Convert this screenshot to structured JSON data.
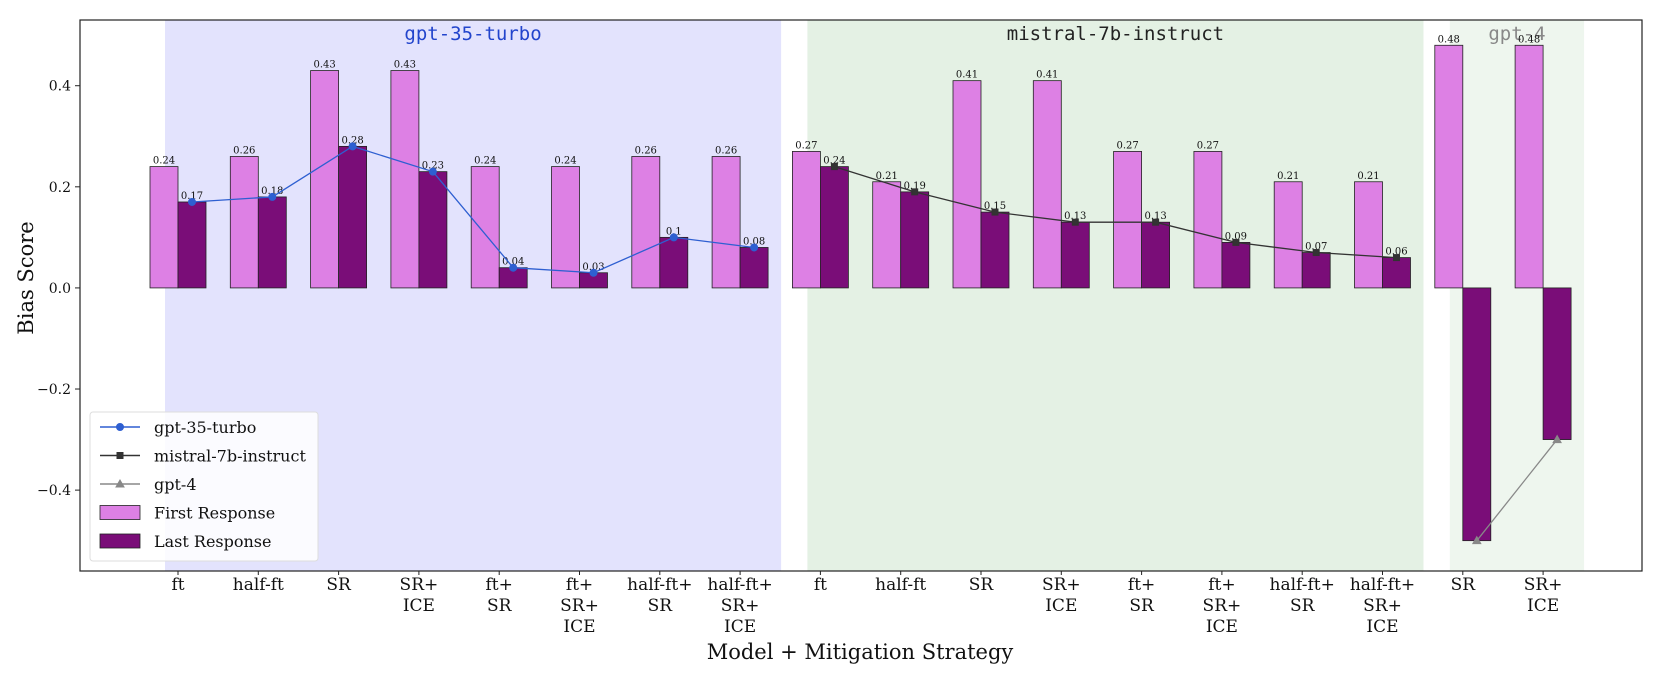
{
  "chart_data": {
    "type": "bar",
    "xlabel": "Model + Mitigation Strategy",
    "ylabel": "Bias Score",
    "ylim": [
      -0.56,
      0.53
    ],
    "yticks": [
      "0.4",
      "0.2",
      "0.0",
      "−0.2",
      "−0.4"
    ],
    "ytick_values": [
      0.4,
      0.2,
      0.0,
      -0.2,
      -0.4
    ],
    "legend_position": "bottom-left",
    "groups": [
      {
        "name": "gpt-35-turbo",
        "title_color": "#2244cc",
        "shade_color": "#e3e3fd",
        "line_color": "#2e5fd1",
        "marker": "circle",
        "categories": [
          [
            "ft"
          ],
          [
            "half-ft"
          ],
          [
            "SR"
          ],
          [
            "SR+",
            "ICE"
          ],
          [
            "ft+",
            "SR"
          ],
          [
            "ft+",
            "SR+",
            "ICE"
          ],
          [
            "half-ft+",
            "SR"
          ],
          [
            "half-ft+",
            "SR+",
            "ICE"
          ]
        ],
        "first": [
          0.24,
          0.26,
          0.43,
          0.43,
          0.24,
          0.24,
          0.26,
          0.26
        ],
        "last": [
          0.17,
          0.18,
          0.28,
          0.23,
          0.04,
          0.03,
          0.1,
          0.08
        ],
        "first_labels": [
          "0.24",
          "0.26",
          "0.43",
          "0.43",
          "0.24",
          "0.24",
          "0.26",
          "0.26"
        ],
        "last_labels": [
          "0.17",
          "0.18",
          "0.28",
          "0.23",
          "0.04",
          "0.03",
          "0.1",
          "0.08"
        ]
      },
      {
        "name": "mistral-7b-instruct",
        "title_color": "#222222",
        "shade_color": "#e4f1e4",
        "line_color": "#333333",
        "marker": "square",
        "categories": [
          [
            "ft"
          ],
          [
            "half-ft"
          ],
          [
            "SR"
          ],
          [
            "SR+",
            "ICE"
          ],
          [
            "ft+",
            "SR"
          ],
          [
            "ft+",
            "SR+",
            "ICE"
          ],
          [
            "half-ft+",
            "SR"
          ],
          [
            "half-ft+",
            "SR+",
            "ICE"
          ]
        ],
        "first": [
          0.27,
          0.21,
          0.41,
          0.41,
          0.27,
          0.27,
          0.21,
          0.21
        ],
        "last": [
          0.24,
          0.19,
          0.15,
          0.13,
          0.13,
          0.09,
          0.07,
          0.06
        ],
        "first_labels": [
          "0.27",
          "0.21",
          "0.41",
          "0.41",
          "0.27",
          "0.27",
          "0.21",
          "0.21"
        ],
        "last_labels": [
          "0.24",
          "0.19",
          "0.15",
          "0.13",
          "0.13",
          "0.09",
          "0.07",
          "0.06"
        ]
      },
      {
        "name": "gpt-4",
        "title_color": "#888888",
        "shade_color": "#eef6ee",
        "line_color": "#888888",
        "marker": "triangle",
        "categories": [
          [
            "SR"
          ],
          [
            "SR+",
            "ICE"
          ]
        ],
        "first": [
          0.48,
          0.48
        ],
        "last": [
          -0.5,
          -0.3
        ],
        "first_labels": [
          "0.48",
          "0.48"
        ],
        "last_labels": [
          "",
          ""
        ]
      }
    ],
    "series": [
      {
        "name": "First Response",
        "color": "#dd80e4"
      },
      {
        "name": "Last Response",
        "color": "#7a0d78"
      }
    ],
    "legend": [
      {
        "label": "gpt-35-turbo",
        "kind": "line",
        "color": "#2e5fd1",
        "marker": "circle"
      },
      {
        "label": "mistral-7b-instruct",
        "kind": "line",
        "color": "#333333",
        "marker": "square"
      },
      {
        "label": "gpt-4",
        "kind": "line",
        "color": "#888888",
        "marker": "triangle"
      },
      {
        "label": "First Response",
        "kind": "patch",
        "color": "#dd80e4"
      },
      {
        "label": "Last Response",
        "kind": "patch",
        "color": "#7a0d78"
      }
    ]
  }
}
